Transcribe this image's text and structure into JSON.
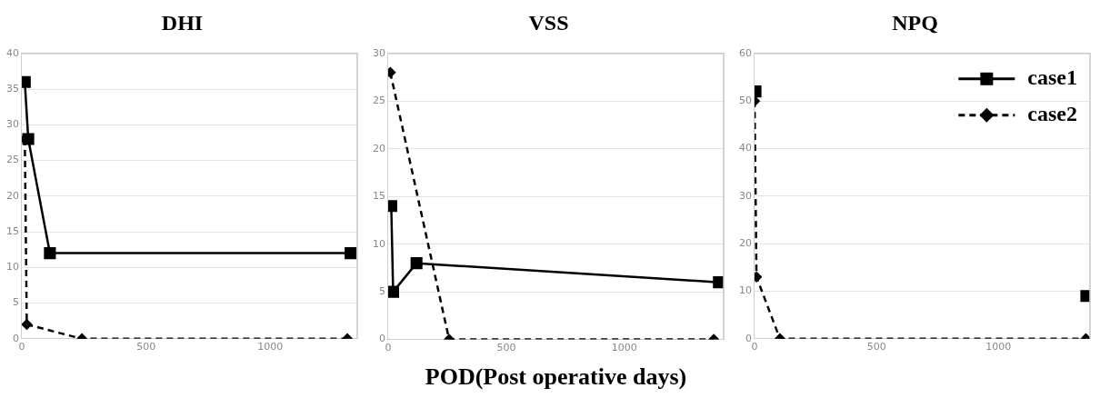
{
  "chart_data": [
    {
      "type": "line",
      "title": "DHI",
      "xlim": [
        0,
        1350
      ],
      "xticks": [
        0,
        500,
        1000
      ],
      "ylim": [
        0,
        40
      ],
      "yticks": [
        0,
        5,
        10,
        15,
        20,
        25,
        30,
        35,
        40
      ],
      "grid": "y",
      "legend": false,
      "series": [
        {
          "color": "#000000",
          "marker": "square",
          "line_style": "solid",
          "x": [
            12,
            26,
            113,
            1323
          ],
          "values": [
            36,
            28,
            12,
            12
          ]
        },
        {
          "color": "#000000",
          "marker": "diamond",
          "line_style": "dashed",
          "x": [
            12,
            20,
            242,
            1310
          ],
          "values": [
            28,
            2,
            0,
            0
          ]
        }
      ]
    },
    {
      "type": "line",
      "title": "VSS",
      "xlabel": "POD(Post operative days)",
      "xlim": [
        0,
        1420
      ],
      "xticks": [
        0,
        500,
        1000
      ],
      "ylim": [
        0,
        30
      ],
      "yticks": [
        0,
        5,
        10,
        15,
        20,
        25,
        30
      ],
      "grid": "y",
      "legend": false,
      "series": [
        {
          "color": "#000000",
          "marker": "square",
          "line_style": "solid",
          "x": [
            13,
            21,
            120,
            1400
          ],
          "values": [
            14,
            5,
            8,
            6
          ]
        },
        {
          "color": "#000000",
          "marker": "diamond",
          "line_style": "dashed",
          "x": [
            9,
            258,
            1378
          ],
          "values": [
            28,
            0,
            0
          ]
        }
      ]
    },
    {
      "type": "line",
      "title": "NPQ",
      "xlim": [
        0,
        1375
      ],
      "xticks": [
        0,
        500,
        1000
      ],
      "ylim": [
        0,
        60
      ],
      "yticks": [
        0,
        10,
        20,
        30,
        40,
        50,
        60
      ],
      "grid": "y",
      "legend": "top right",
      "series": [
        {
          "name": "case1",
          "color": "#000000",
          "marker": "square",
          "line_style": "solid",
          "x": [
            4,
            104,
            1360
          ],
          "values": [
            52,
            null,
            9
          ]
        },
        {
          "name": "case2",
          "color": "#000000",
          "marker": "diamond",
          "line_style": "dashed",
          "x": [
            0,
            8,
            104,
            1358
          ],
          "values": [
            50,
            13,
            0,
            0
          ]
        }
      ]
    }
  ]
}
